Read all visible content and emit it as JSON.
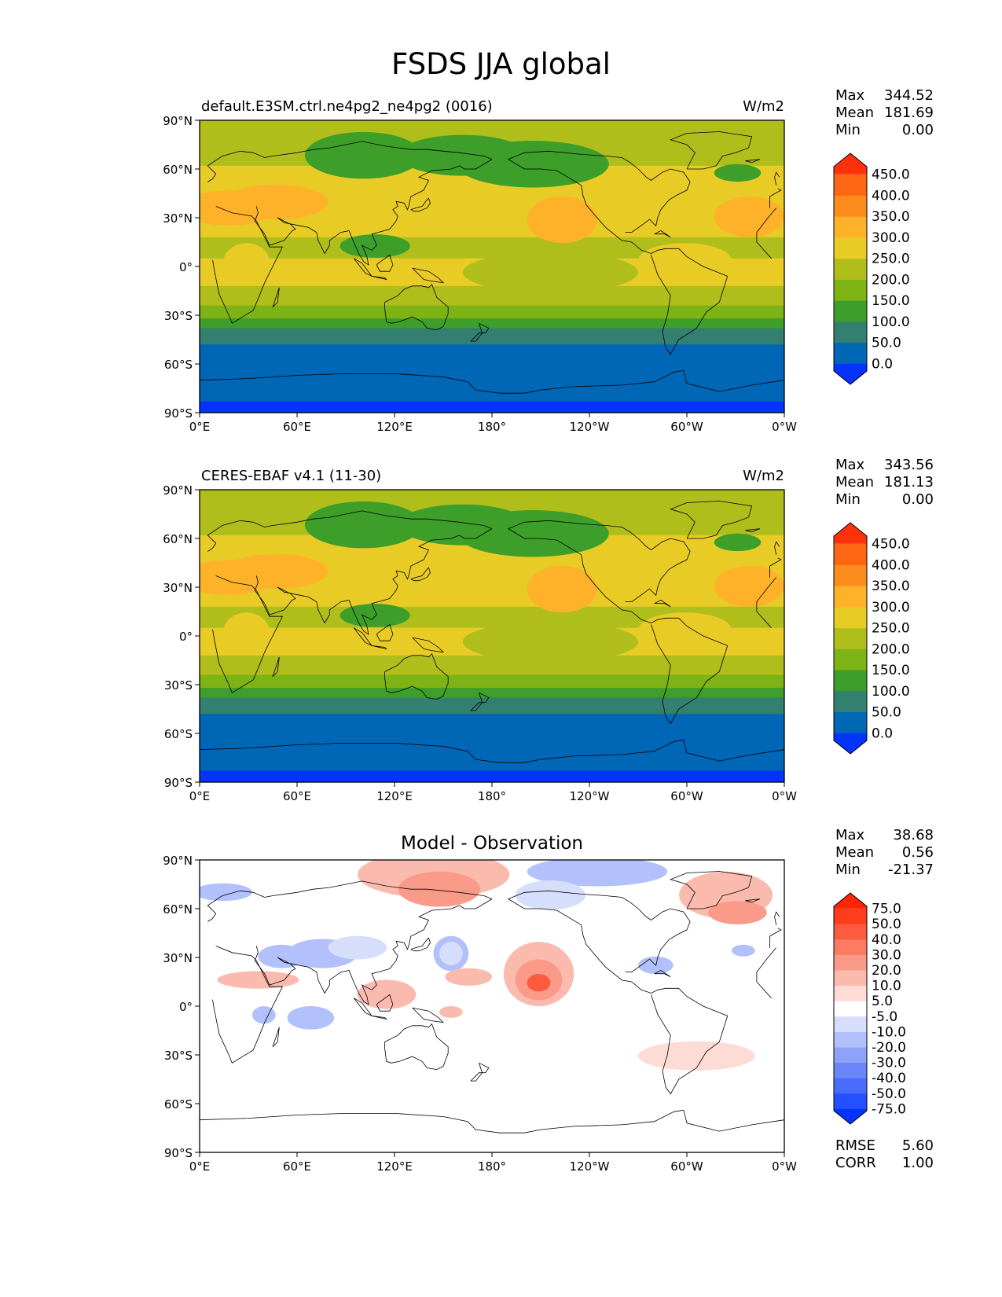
{
  "figure": {
    "title": "FSDS JJA global"
  },
  "panels": [
    {
      "left_title": "default.E3SM.ctrl.ne4pg2_ne4pg2 (0016)",
      "right_title": "W/m2",
      "center_title": "",
      "stats": {
        "labels": [
          "Max",
          "Mean",
          "Min"
        ],
        "values": [
          "344.52",
          "181.69",
          "0.00"
        ]
      },
      "colorbar": {
        "labels": [
          "450.0",
          "400.0",
          "350.0",
          "300.0",
          "250.0",
          "200.0",
          "150.0",
          "100.0",
          "50.0",
          "0.0"
        ],
        "colors": [
          "#0433ff",
          "#0066b6",
          "#338070",
          "#3e9e2a",
          "#7eb315",
          "#b0be1c",
          "#e8cc25",
          "#fdb22a",
          "#fd8c1e",
          "#fe6712",
          "#fe310a"
        ]
      },
      "field": "model"
    },
    {
      "left_title": "CERES-EBAF v4.1 (11-30)",
      "right_title": "W/m2",
      "center_title": "",
      "stats": {
        "labels": [
          "Max",
          "Mean",
          "Min"
        ],
        "values": [
          "343.56",
          "181.13",
          "0.00"
        ]
      },
      "colorbar": {
        "labels": [
          "450.0",
          "400.0",
          "350.0",
          "300.0",
          "250.0",
          "200.0",
          "150.0",
          "100.0",
          "50.0",
          "0.0"
        ],
        "colors": [
          "#0433ff",
          "#0066b6",
          "#338070",
          "#3e9e2a",
          "#7eb315",
          "#b0be1c",
          "#e8cc25",
          "#fdb22a",
          "#fd8c1e",
          "#fe6712",
          "#fe310a"
        ]
      },
      "field": "obs"
    },
    {
      "left_title": "",
      "right_title": "",
      "center_title": "Model - Observation",
      "stats": {
        "labels": [
          "Max",
          "Mean",
          "Min"
        ],
        "values": [
          "38.68",
          "0.56",
          "-21.37"
        ]
      },
      "extra_stats": {
        "labels": [
          "RMSE",
          "CORR"
        ],
        "values": [
          "5.60",
          "1.00"
        ]
      },
      "colorbar": {
        "labels": [
          "75.0",
          "50.0",
          "40.0",
          "30.0",
          "20.0",
          "10.0",
          "5.0",
          "-5.0",
          "-10.0",
          "-20.0",
          "-30.0",
          "-40.0",
          "-50.0",
          "-75.0"
        ],
        "colors": [
          "#0433ff",
          "#2450fe",
          "#4a6cfd",
          "#6b86fb",
          "#8ea2fa",
          "#b2c0fb",
          "#d6defc",
          "#ffffff",
          "#fddcd6",
          "#fbbaae",
          "#fa9a88",
          "#fb7c62",
          "#fc5c3d",
          "#fe3d1c",
          "#fe2506"
        ]
      },
      "field": "diff"
    }
  ],
  "axes": {
    "lat_ticks": [
      "90°N",
      "60°N",
      "30°N",
      "0°",
      "30°S",
      "60°S",
      "90°S"
    ],
    "lon_ticks": [
      "0°E",
      "60°E",
      "120°E",
      "180°",
      "120°W",
      "60°W",
      "0°W"
    ]
  },
  "chart_data": {
    "type": "heatmap",
    "projection": "PlateCarree, central longitude 180",
    "x_range": [
      0,
      360
    ],
    "y_range": [
      -90,
      90
    ],
    "variable": "FSDS",
    "season": "JJA"
  }
}
